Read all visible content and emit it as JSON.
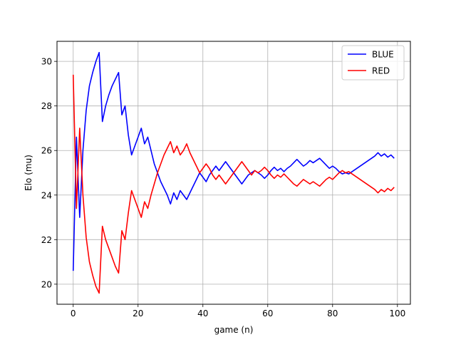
{
  "chart_data": {
    "type": "line",
    "title": "",
    "xlabel": "game (n)",
    "ylabel": "Elo (mu)",
    "xlim": [
      -5,
      104
    ],
    "ylim": [
      19.1,
      30.9
    ],
    "xticks": [
      0,
      20,
      40,
      60,
      80,
      100
    ],
    "yticks": [
      20,
      22,
      24,
      26,
      28,
      30
    ],
    "grid": true,
    "legend": "top-right",
    "x": [
      0,
      1,
      2,
      3,
      4,
      5,
      6,
      7,
      8,
      9,
      10,
      11,
      12,
      13,
      14,
      15,
      16,
      17,
      18,
      19,
      20,
      21,
      22,
      23,
      24,
      25,
      26,
      27,
      28,
      29,
      30,
      31,
      32,
      33,
      34,
      35,
      36,
      37,
      38,
      39,
      40,
      41,
      42,
      43,
      44,
      45,
      46,
      47,
      48,
      49,
      50,
      51,
      52,
      53,
      54,
      55,
      56,
      57,
      58,
      59,
      60,
      61,
      62,
      63,
      64,
      65,
      66,
      67,
      68,
      69,
      70,
      71,
      72,
      73,
      74,
      75,
      76,
      77,
      78,
      79,
      80,
      81,
      82,
      83,
      84,
      85,
      86,
      87,
      88,
      89,
      90,
      91,
      92,
      93,
      94,
      95,
      96,
      97,
      98,
      99
    ],
    "series": [
      {
        "name": "BLUE",
        "color": "#0000ff",
        "values": [
          20.6,
          26.6,
          23.0,
          26.0,
          27.8,
          28.9,
          29.5,
          30.0,
          30.4,
          27.3,
          28.0,
          28.5,
          28.9,
          29.2,
          29.5,
          27.6,
          28.0,
          26.7,
          25.8,
          26.2,
          26.6,
          27.0,
          26.3,
          26.6,
          26.0,
          25.4,
          25.0,
          24.6,
          24.3,
          24.0,
          23.6,
          24.1,
          23.8,
          24.2,
          24.0,
          23.8,
          24.1,
          24.4,
          24.7,
          25.0,
          24.8,
          24.6,
          24.9,
          25.1,
          25.3,
          25.1,
          25.3,
          25.5,
          25.3,
          25.1,
          24.9,
          24.7,
          24.5,
          24.7,
          24.9,
          25.0,
          25.1,
          25.0,
          24.9,
          24.75,
          24.9,
          25.1,
          25.25,
          25.1,
          25.2,
          25.05,
          25.2,
          25.3,
          25.45,
          25.6,
          25.45,
          25.3,
          25.4,
          25.55,
          25.45,
          25.55,
          25.65,
          25.5,
          25.35,
          25.2,
          25.3,
          25.2,
          25.05,
          24.95,
          25.0,
          24.95,
          25.05,
          25.15,
          25.25,
          25.35,
          25.45,
          25.55,
          25.65,
          25.75,
          25.9,
          25.75,
          25.85,
          25.7,
          25.8,
          25.65
        ]
      },
      {
        "name": "RED",
        "color": "#ff0000",
        "values": [
          29.4,
          23.4,
          27.0,
          24.0,
          22.1,
          21.0,
          20.4,
          19.9,
          19.6,
          22.6,
          22.0,
          21.6,
          21.2,
          20.8,
          20.5,
          22.4,
          22.0,
          23.2,
          24.2,
          23.8,
          23.4,
          23.0,
          23.7,
          23.4,
          24.0,
          24.5,
          25.0,
          25.4,
          25.8,
          26.1,
          26.4,
          25.9,
          26.2,
          25.8,
          26.0,
          26.3,
          25.9,
          25.6,
          25.3,
          25.0,
          25.2,
          25.4,
          25.2,
          24.9,
          24.7,
          24.9,
          24.7,
          24.5,
          24.7,
          24.9,
          25.1,
          25.3,
          25.5,
          25.3,
          25.1,
          24.9,
          25.1,
          25.0,
          25.1,
          25.25,
          25.1,
          24.9,
          24.75,
          24.9,
          24.8,
          24.95,
          24.8,
          24.65,
          24.5,
          24.4,
          24.55,
          24.7,
          24.6,
          24.5,
          24.6,
          24.5,
          24.4,
          24.55,
          24.7,
          24.8,
          24.7,
          24.85,
          25.0,
          25.1,
          25.0,
          25.05,
          24.95,
          24.85,
          24.75,
          24.65,
          24.55,
          24.45,
          24.35,
          24.25,
          24.1,
          24.25,
          24.15,
          24.3,
          24.2,
          24.35
        ]
      }
    ]
  }
}
